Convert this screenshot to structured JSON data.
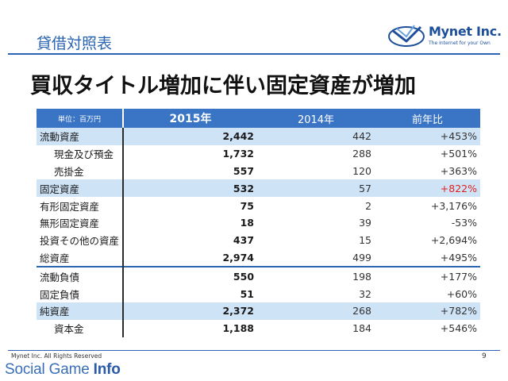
{
  "slide_label": "貸借対照表",
  "headline": "買収タイトル増加に伴い固定資産が増加",
  "logo": {
    "name": "Mynet Inc.",
    "tagline": "The Internet for your Own"
  },
  "colors": {
    "accent": "#2b64b0",
    "header_bg": "#3a74c4",
    "highlight": "#cfe3f7",
    "negative_emphasis": "#e02020"
  },
  "table": {
    "unit": "単位：百万円",
    "col_2015": "2015年",
    "col_2014": "2014年",
    "col_ratio": "前年比",
    "rows": [
      {
        "label": "流動資産",
        "v2015": "2,442",
        "v2014": "442",
        "ratio": "+453%"
      },
      {
        "label": "現金及び預金",
        "v2015": "1,732",
        "v2014": "288",
        "ratio": "+501%"
      },
      {
        "label": "売掛金",
        "v2015": "557",
        "v2014": "120",
        "ratio": "+363%"
      },
      {
        "label": "固定資産",
        "v2015": "532",
        "v2014": "57",
        "ratio": "+822%"
      },
      {
        "label": "有形固定資産",
        "v2015": "75",
        "v2014": "2",
        "ratio": "+3,176%"
      },
      {
        "label": "無形固定資産",
        "v2015": "18",
        "v2014": "39",
        "ratio": "-53%"
      },
      {
        "label": "投資その他の資産",
        "v2015": "437",
        "v2014": "15",
        "ratio": "+2,694%"
      },
      {
        "label": "総資産",
        "v2015": "2,974",
        "v2014": "499",
        "ratio": "+495%"
      },
      {
        "label": "流動負債",
        "v2015": "550",
        "v2014": "198",
        "ratio": "+177%"
      },
      {
        "label": "固定負債",
        "v2015": "51",
        "v2014": "32",
        "ratio": "+60%"
      },
      {
        "label": "純資産",
        "v2015": "2,372",
        "v2014": "268",
        "ratio": "+782%"
      },
      {
        "label": "資本金",
        "v2015": "1,188",
        "v2014": "184",
        "ratio": "+546%"
      }
    ]
  },
  "footer": {
    "copyright": "Mynet Inc. All Rights Reserved",
    "page": "9"
  },
  "watermark": {
    "part1": "Social Game ",
    "part2": "Info"
  }
}
